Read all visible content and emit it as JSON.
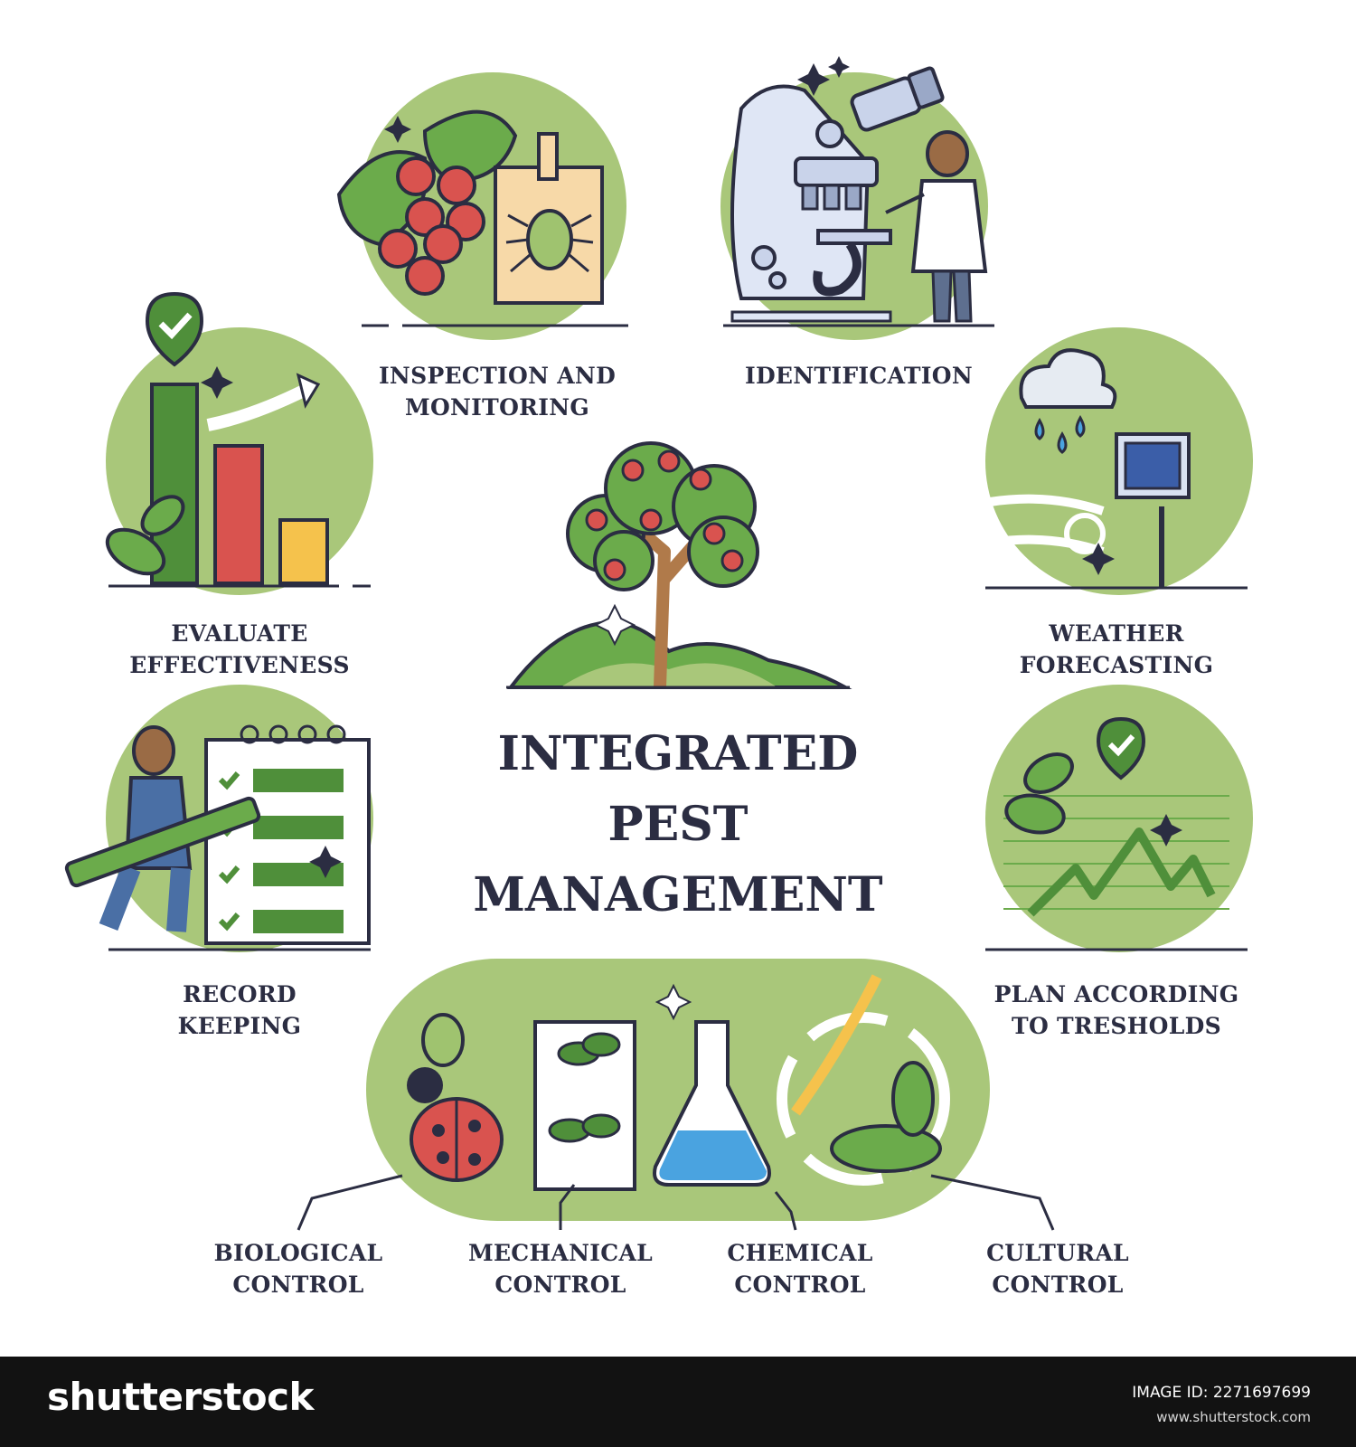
{
  "title": [
    "INTEGRATED",
    "PEST",
    "MANAGEMENT"
  ],
  "steps": {
    "inspection": [
      "INSPECTION AND",
      "MONITORING"
    ],
    "identification": [
      "IDENTIFICATION"
    ],
    "weather": [
      "WEATHER",
      "FORECASTING"
    ],
    "plan": [
      "PLAN ACCORDING",
      "TO TRESHOLDS"
    ],
    "evaluate": [
      "EVALUATE",
      "EFFECTIVENESS"
    ],
    "record": [
      "RECORD",
      "KEEPING"
    ]
  },
  "controls": {
    "biological": [
      "BIOLOGICAL",
      "CONTROL"
    ],
    "mechanical": [
      "MECHANICAL",
      "CONTROL"
    ],
    "chemical": [
      "CHEMICAL",
      "CONTROL"
    ],
    "cultural": [
      "CULTURAL",
      "CONTROL"
    ]
  },
  "footer": {
    "brand": "shutterstock",
    "image_id": "IMAGE ID: 2271697699",
    "site": "www.shutterstock.com"
  },
  "colors": {
    "green_bg": "#a9c77a",
    "green_dark": "#4f8f3a",
    "outline": "#2b2d42",
    "red": "#d9534f",
    "yellow": "#f5c24c",
    "blue": "#4aa3e0"
  }
}
